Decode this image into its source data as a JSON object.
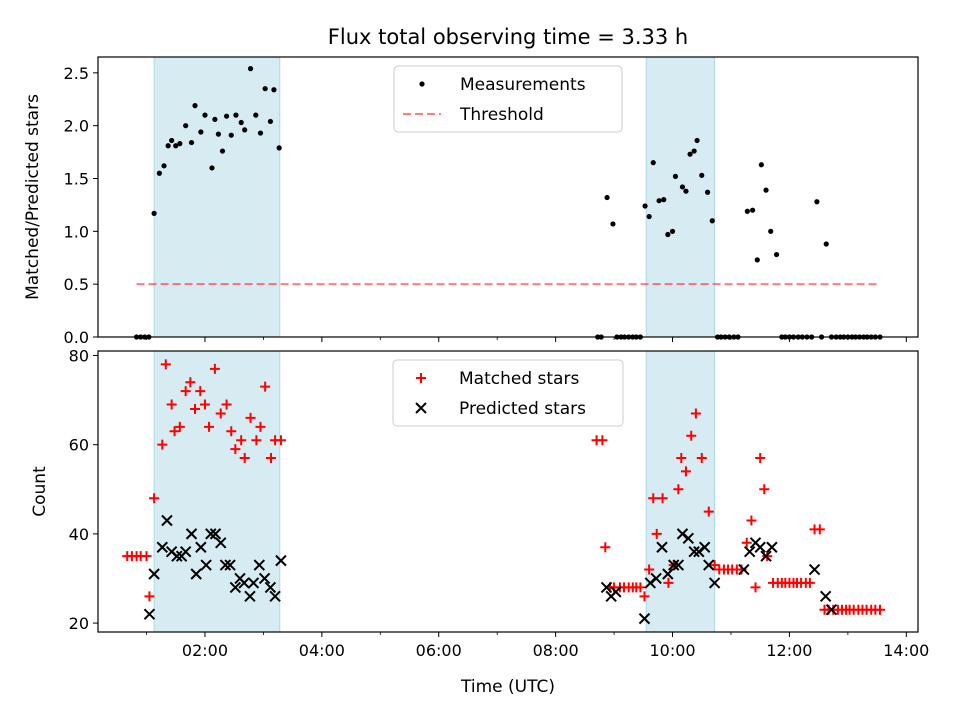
{
  "title": "Flux total observing time = 3.33 h",
  "xlabel": "Time (UTC)",
  "x_ticks": [
    "02:00",
    "04:00",
    "06:00",
    "08:00",
    "10:00",
    "12:00",
    "14:00"
  ],
  "colors": {
    "shade": "#add8e6",
    "measure": "#000000",
    "threshold": "#ff0000",
    "matched": "#ff0000",
    "predicted": "#000000"
  },
  "chart_data": [
    {
      "type": "scatter",
      "x_unit": "hours UTC",
      "ylabel": "Matched/Predicted stars",
      "ylim": [
        0,
        2.65
      ],
      "xlim": [
        0.17,
        14.2
      ],
      "y_ticks": [
        "0.0",
        "0.5",
        "1.0",
        "1.5",
        "2.0",
        "2.5"
      ],
      "legend_position": "top-center",
      "shaded_intervals": [
        [
          1.13,
          3.28
        ],
        [
          9.55,
          10.72
        ]
      ],
      "threshold": {
        "name": "Threshold",
        "y": 0.5,
        "x_range": [
          0.83,
          13.55
        ]
      },
      "series": [
        {
          "name": "Measurements",
          "points": [
            [
              0.83,
              0
            ],
            [
              0.9,
              0
            ],
            [
              0.97,
              0
            ],
            [
              1.04,
              0
            ],
            [
              1.13,
              1.17
            ],
            [
              1.22,
              1.55
            ],
            [
              1.3,
              1.62
            ],
            [
              1.37,
              1.81
            ],
            [
              1.43,
              1.86
            ],
            [
              1.5,
              1.81
            ],
            [
              1.57,
              1.83
            ],
            [
              1.67,
              2.0
            ],
            [
              1.77,
              1.84
            ],
            [
              1.83,
              2.19
            ],
            [
              1.93,
              1.94
            ],
            [
              2.0,
              2.1
            ],
            [
              2.12,
              1.6
            ],
            [
              2.17,
              2.06
            ],
            [
              2.23,
              1.92
            ],
            [
              2.3,
              1.76
            ],
            [
              2.37,
              2.09
            ],
            [
              2.45,
              1.91
            ],
            [
              2.53,
              2.1
            ],
            [
              2.62,
              2.03
            ],
            [
              2.68,
              1.96
            ],
            [
              2.78,
              2.54
            ],
            [
              2.87,
              2.1
            ],
            [
              2.95,
              1.93
            ],
            [
              3.03,
              2.35
            ],
            [
              3.12,
              2.04
            ],
            [
              3.18,
              2.34
            ],
            [
              3.27,
              1.79
            ],
            [
              8.72,
              0
            ],
            [
              8.78,
              0
            ],
            [
              8.88,
              1.32
            ],
            [
              8.98,
              1.07
            ],
            [
              9.05,
              0
            ],
            [
              9.12,
              0
            ],
            [
              9.18,
              0
            ],
            [
              9.25,
              0
            ],
            [
              9.32,
              0
            ],
            [
              9.38,
              0
            ],
            [
              9.45,
              0
            ],
            [
              9.53,
              1.24
            ],
            [
              9.6,
              1.14
            ],
            [
              9.67,
              1.65
            ],
            [
              9.77,
              1.29
            ],
            [
              9.85,
              1.3
            ],
            [
              9.92,
              0.97
            ],
            [
              10.0,
              1.0
            ],
            [
              10.05,
              1.52
            ],
            [
              10.17,
              1.42
            ],
            [
              10.23,
              1.38
            ],
            [
              10.3,
              1.73
            ],
            [
              10.37,
              1.76
            ],
            [
              10.42,
              1.86
            ],
            [
              10.5,
              1.53
            ],
            [
              10.6,
              1.37
            ],
            [
              10.68,
              1.1
            ],
            [
              10.77,
              0
            ],
            [
              10.83,
              0
            ],
            [
              10.9,
              0
            ],
            [
              10.97,
              0
            ],
            [
              11.05,
              0
            ],
            [
              11.12,
              0
            ],
            [
              11.28,
              1.19
            ],
            [
              11.37,
              1.2
            ],
            [
              11.45,
              0.73
            ],
            [
              11.52,
              1.63
            ],
            [
              11.6,
              1.39
            ],
            [
              11.68,
              1.0
            ],
            [
              11.78,
              0.78
            ],
            [
              11.87,
              0
            ],
            [
              11.93,
              0
            ],
            [
              12.0,
              0
            ],
            [
              12.07,
              0
            ],
            [
              12.15,
              0
            ],
            [
              12.22,
              0
            ],
            [
              12.3,
              0
            ],
            [
              12.38,
              0
            ],
            [
              12.47,
              1.28
            ],
            [
              12.55,
              0
            ],
            [
              12.63,
              0.88
            ],
            [
              12.72,
              0
            ],
            [
              12.8,
              0
            ],
            [
              12.87,
              0
            ],
            [
              12.93,
              0
            ],
            [
              13.0,
              0
            ],
            [
              13.07,
              0
            ],
            [
              13.13,
              0
            ],
            [
              13.2,
              0
            ],
            [
              13.27,
              0
            ],
            [
              13.33,
              0
            ],
            [
              13.4,
              0
            ],
            [
              13.47,
              0
            ],
            [
              13.55,
              0
            ]
          ]
        }
      ]
    },
    {
      "type": "scatter",
      "x_unit": "hours UTC",
      "ylabel": "Count",
      "ylim": [
        18,
        81
      ],
      "xlim": [
        0.17,
        14.2
      ],
      "y_ticks": [
        "20",
        "40",
        "60",
        "80"
      ],
      "legend_position": "top-center",
      "shaded_intervals": [
        [
          1.13,
          3.28
        ],
        [
          9.55,
          10.72
        ]
      ],
      "series": [
        {
          "name": "Matched stars",
          "marker": "plus",
          "points": [
            [
              0.67,
              35
            ],
            [
              0.75,
              35
            ],
            [
              0.83,
              35
            ],
            [
              0.9,
              35
            ],
            [
              1.0,
              35
            ],
            [
              1.05,
              26
            ],
            [
              1.13,
              48
            ],
            [
              1.27,
              60
            ],
            [
              1.33,
              78
            ],
            [
              1.43,
              69
            ],
            [
              1.48,
              63
            ],
            [
              1.57,
              64
            ],
            [
              1.67,
              72
            ],
            [
              1.75,
              74
            ],
            [
              1.83,
              68
            ],
            [
              1.92,
              72
            ],
            [
              2.0,
              69
            ],
            [
              2.07,
              64
            ],
            [
              2.17,
              77
            ],
            [
              2.27,
              67
            ],
            [
              2.37,
              69
            ],
            [
              2.45,
              63
            ],
            [
              2.52,
              59
            ],
            [
              2.62,
              61
            ],
            [
              2.68,
              57
            ],
            [
              2.78,
              66
            ],
            [
              2.88,
              61
            ],
            [
              2.95,
              64
            ],
            [
              3.03,
              73
            ],
            [
              3.13,
              57
            ],
            [
              3.2,
              61
            ],
            [
              3.3,
              61
            ],
            [
              8.7,
              61
            ],
            [
              8.8,
              61
            ],
            [
              8.85,
              37
            ],
            [
              8.93,
              28
            ],
            [
              9.0,
              28
            ],
            [
              9.1,
              28
            ],
            [
              9.17,
              28
            ],
            [
              9.25,
              28
            ],
            [
              9.32,
              28
            ],
            [
              9.38,
              28
            ],
            [
              9.45,
              28
            ],
            [
              9.52,
              26
            ],
            [
              9.6,
              32
            ],
            [
              9.67,
              48
            ],
            [
              9.73,
              40
            ],
            [
              9.83,
              48
            ],
            [
              9.93,
              29
            ],
            [
              10.02,
              33
            ],
            [
              10.1,
              50
            ],
            [
              10.15,
              57
            ],
            [
              10.23,
              54
            ],
            [
              10.32,
              62
            ],
            [
              10.4,
              67
            ],
            [
              10.5,
              57
            ],
            [
              10.62,
              45
            ],
            [
              10.72,
              33
            ],
            [
              10.8,
              32
            ],
            [
              10.88,
              32
            ],
            [
              10.95,
              32
            ],
            [
              11.02,
              32
            ],
            [
              11.1,
              32
            ],
            [
              11.18,
              32
            ],
            [
              11.27,
              38
            ],
            [
              11.35,
              43
            ],
            [
              11.42,
              28
            ],
            [
              11.5,
              57
            ],
            [
              11.57,
              50
            ],
            [
              11.62,
              35
            ],
            [
              11.72,
              29
            ],
            [
              11.8,
              29
            ],
            [
              11.87,
              29
            ],
            [
              11.93,
              29
            ],
            [
              12.0,
              29
            ],
            [
              12.07,
              29
            ],
            [
              12.13,
              29
            ],
            [
              12.2,
              29
            ],
            [
              12.28,
              29
            ],
            [
              12.35,
              29
            ],
            [
              12.43,
              41
            ],
            [
              12.52,
              41
            ],
            [
              12.6,
              23
            ],
            [
              12.67,
              23
            ],
            [
              12.75,
              23
            ],
            [
              12.83,
              23
            ],
            [
              12.9,
              23
            ],
            [
              12.97,
              23
            ],
            [
              13.03,
              23
            ],
            [
              13.1,
              23
            ],
            [
              13.18,
              23
            ],
            [
              13.25,
              23
            ],
            [
              13.32,
              23
            ],
            [
              13.4,
              23
            ],
            [
              13.47,
              23
            ],
            [
              13.55,
              23
            ]
          ]
        },
        {
          "name": "Predicted stars",
          "marker": "x",
          "points": [
            [
              1.05,
              22
            ],
            [
              1.13,
              31
            ],
            [
              1.27,
              37
            ],
            [
              1.35,
              43
            ],
            [
              1.43,
              36
            ],
            [
              1.52,
              35
            ],
            [
              1.6,
              35
            ],
            [
              1.67,
              36
            ],
            [
              1.77,
              40
            ],
            [
              1.85,
              31
            ],
            [
              1.93,
              37
            ],
            [
              2.02,
              33
            ],
            [
              2.1,
              40
            ],
            [
              2.18,
              40
            ],
            [
              2.27,
              38
            ],
            [
              2.35,
              33
            ],
            [
              2.43,
              33
            ],
            [
              2.52,
              28
            ],
            [
              2.6,
              30
            ],
            [
              2.67,
              29
            ],
            [
              2.77,
              26
            ],
            [
              2.83,
              29
            ],
            [
              2.93,
              33
            ],
            [
              3.02,
              30
            ],
            [
              3.12,
              28
            ],
            [
              3.2,
              26
            ],
            [
              3.3,
              34
            ],
            [
              8.87,
              28
            ],
            [
              8.95,
              26
            ],
            [
              9.03,
              27
            ],
            [
              9.52,
              21
            ],
            [
              9.62,
              29
            ],
            [
              9.72,
              30
            ],
            [
              9.82,
              37
            ],
            [
              9.92,
              31
            ],
            [
              10.02,
              33
            ],
            [
              10.1,
              33
            ],
            [
              10.17,
              40
            ],
            [
              10.27,
              39
            ],
            [
              10.37,
              36
            ],
            [
              10.45,
              36
            ],
            [
              10.55,
              37
            ],
            [
              10.62,
              33
            ],
            [
              10.72,
              29
            ],
            [
              11.22,
              32
            ],
            [
              11.32,
              36
            ],
            [
              11.42,
              38
            ],
            [
              11.5,
              37
            ],
            [
              11.6,
              35
            ],
            [
              11.7,
              37
            ],
            [
              12.43,
              32
            ],
            [
              12.62,
              26
            ],
            [
              12.72,
              23
            ]
          ]
        }
      ]
    }
  ]
}
